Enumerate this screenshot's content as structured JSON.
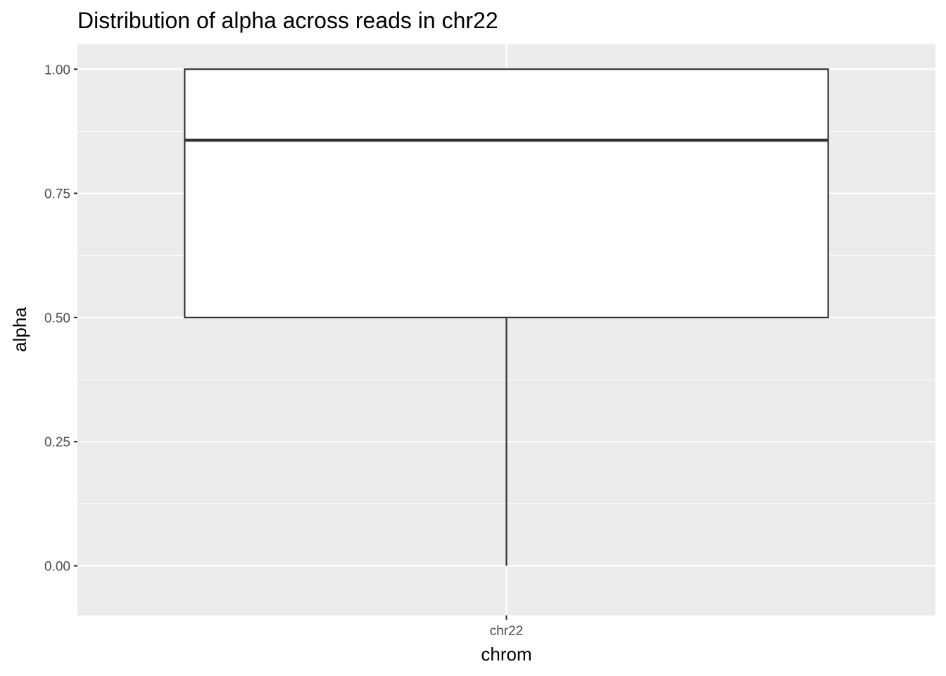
{
  "chart_data": {
    "type": "box",
    "title": "Distribution of alpha across reads in chr22",
    "xlabel": "chrom",
    "ylabel": "alpha",
    "categories": [
      "chr22"
    ],
    "ylim": [
      -0.1,
      1.05
    ],
    "yticks": [
      0.0,
      0.25,
      0.5,
      0.75,
      1.0
    ],
    "ytick_labels": [
      "0.00",
      "0.25",
      "0.50",
      "0.75",
      "1.00"
    ],
    "boxes": [
      {
        "category": "chr22",
        "min": 0.0,
        "q1": 0.5,
        "median": 0.857,
        "q3": 1.0,
        "max": 1.0
      }
    ],
    "grid": true,
    "legend": "none"
  },
  "colors": {
    "panel_background": "#ebebeb",
    "grid_major": "#ffffff",
    "box_fill": "#ffffff",
    "box_stroke": "#333333",
    "tick_color": "#333333",
    "tick_label": "#4d4d4d"
  }
}
